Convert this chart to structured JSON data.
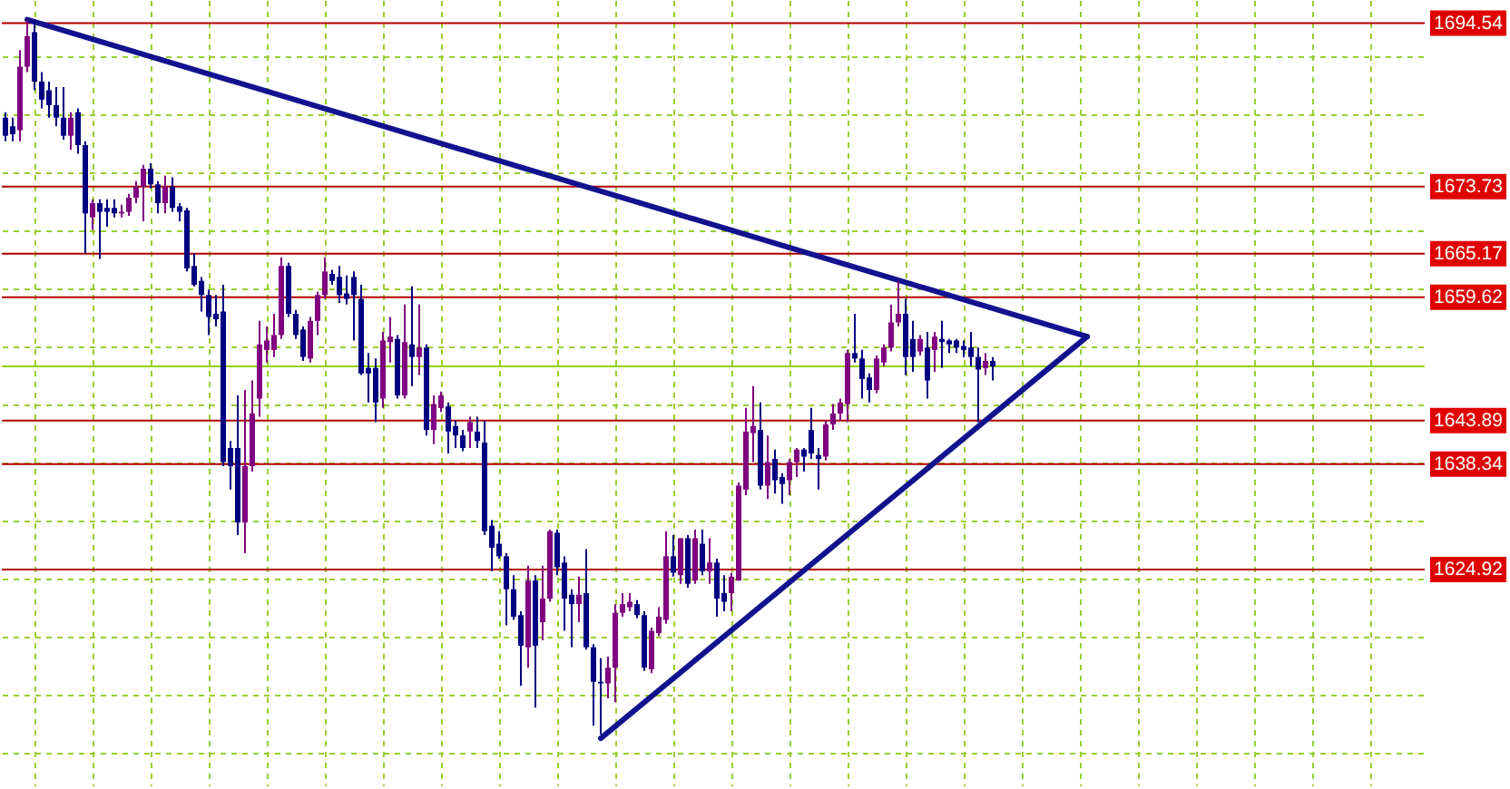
{
  "chart_data": {
    "type": "candlestick",
    "categories": [
      null,
      null,
      null,
      null,
      null,
      null,
      null,
      null,
      null,
      null,
      null,
      null,
      null,
      null,
      null,
      null,
      null,
      null,
      null,
      null,
      null,
      null,
      null,
      null,
      null,
      null,
      null,
      null,
      null,
      null,
      null,
      null,
      null,
      null,
      null,
      null,
      null,
      null,
      null,
      null,
      null,
      null,
      null,
      null,
      null,
      null,
      null,
      null,
      null,
      null,
      null,
      null,
      null,
      null,
      null,
      null,
      null,
      null,
      null,
      null,
      null,
      null,
      null,
      null,
      null,
      null,
      null,
      null,
      null,
      null,
      null,
      null,
      null,
      null,
      null,
      null,
      null,
      null,
      null,
      null,
      null,
      null,
      null,
      null,
      null,
      null,
      null,
      null,
      null,
      null,
      null,
      null,
      null,
      null,
      null,
      null,
      null,
      null,
      null,
      null,
      null,
      null,
      null,
      null,
      null,
      null,
      null,
      null,
      null,
      null,
      null,
      null,
      null,
      null,
      null,
      null,
      null,
      null,
      null,
      null,
      null,
      null,
      null,
      null,
      null,
      null,
      null,
      null,
      null,
      null,
      null,
      null,
      null,
      null,
      null,
      null,
      null,
      null,
      null,
      null,
      null,
      null,
      null,
      null,
      null,
      null,
      null,
      null,
      null,
      null,
      null,
      null,
      null,
      null,
      null,
      null,
      null,
      null,
      null,
      null,
      null,
      null,
      null,
      null,
      null,
      null,
      null,
      null,
      null,
      null,
      null,
      null,
      null,
      null,
      null,
      null,
      null,
      null,
      null,
      null,
      null,
      null,
      null,
      null,
      null,
      null,
      null,
      null,
      null,
      null,
      null,
      null,
      null,
      null,
      null,
      null
    ],
    "ohlc": [
      [
        1682.5,
        1683.2,
        1679.5,
        1680.2
      ],
      [
        1681.4,
        1682.5,
        1679.5,
        1680.4
      ],
      [
        1680.9,
        1691.1,
        1679.5,
        1689.0
      ],
      [
        1689.0,
        1695.0,
        1688.3,
        1692.9
      ],
      [
        1693.4,
        1694.8,
        1686.0,
        1687.1
      ],
      [
        1687.1,
        1688.3,
        1683.7,
        1684.8
      ],
      [
        1686.0,
        1687.1,
        1682.5,
        1684.1
      ],
      [
        1684.1,
        1686.4,
        1681.4,
        1682.5
      ],
      [
        1682.5,
        1686.4,
        1679.7,
        1680.2
      ],
      [
        1680.2,
        1683.2,
        1678.4,
        1682.5
      ],
      [
        1683.2,
        1683.7,
        1677.9,
        1679.0
      ],
      [
        1679.0,
        1679.5,
        1665.2,
        1670.3
      ],
      [
        1669.8,
        1672.1,
        1668.2,
        1671.6
      ],
      [
        1671.6,
        1672.1,
        1664.5,
        1670.5
      ],
      [
        1671.0,
        1672.1,
        1668.6,
        1670.5
      ],
      [
        1671.0,
        1672.1,
        1669.8,
        1670.3
      ],
      [
        1670.3,
        1671.4,
        1669.8,
        1670.5
      ],
      [
        1670.5,
        1672.8,
        1670.0,
        1672.3
      ],
      [
        1672.3,
        1674.4,
        1671.6,
        1673.7
      ],
      [
        1673.7,
        1676.5,
        1669.3,
        1676.0
      ],
      [
        1676.0,
        1676.7,
        1673.5,
        1674.0
      ],
      [
        1674.0,
        1674.4,
        1670.3,
        1671.6
      ],
      [
        1671.6,
        1675.1,
        1670.3,
        1673.7
      ],
      [
        1673.7,
        1674.9,
        1670.5,
        1671.0
      ],
      [
        1671.2,
        1671.6,
        1669.3,
        1670.5
      ],
      [
        1670.7,
        1671.0,
        1662.9,
        1663.3
      ],
      [
        1663.6,
        1665.2,
        1661.0,
        1661.2
      ],
      [
        1661.7,
        1662.2,
        1657.8,
        1659.9
      ],
      [
        1659.9,
        1660.6,
        1654.8,
        1657.1
      ],
      [
        1657.5,
        1659.9,
        1655.9,
        1656.8
      ],
      [
        1657.8,
        1661.2,
        1638.1,
        1638.6
      ],
      [
        1640.4,
        1641.3,
        1635.1,
        1638.1
      ],
      [
        1640.4,
        1647.1,
        1629.3,
        1630.9
      ],
      [
        1630.9,
        1647.8,
        1627.0,
        1638.1
      ],
      [
        1638.1,
        1649.0,
        1637.4,
        1644.8
      ],
      [
        1646.7,
        1656.6,
        1644.4,
        1653.6
      ],
      [
        1652.9,
        1655.9,
        1651.3,
        1654.1
      ],
      [
        1652.9,
        1657.5,
        1652.0,
        1654.8
      ],
      [
        1654.8,
        1664.7,
        1654.3,
        1663.6
      ],
      [
        1663.6,
        1664.0,
        1657.1,
        1657.5
      ],
      [
        1657.5,
        1658.0,
        1654.3,
        1654.8
      ],
      [
        1655.5,
        1655.9,
        1651.5,
        1652.0
      ],
      [
        1651.8,
        1657.1,
        1651.3,
        1656.6
      ],
      [
        1656.6,
        1660.3,
        1654.8,
        1659.9
      ],
      [
        1659.9,
        1664.7,
        1659.4,
        1662.9
      ],
      [
        1662.6,
        1663.1,
        1661.2,
        1661.7
      ],
      [
        1662.2,
        1663.6,
        1658.9,
        1659.9
      ],
      [
        1660.1,
        1662.4,
        1658.7,
        1659.4
      ],
      [
        1662.2,
        1662.9,
        1654.1,
        1659.9
      ],
      [
        1659.4,
        1661.2,
        1649.7,
        1649.9
      ],
      [
        1650.6,
        1652.5,
        1646.2,
        1649.9
      ],
      [
        1650.6,
        1651.8,
        1643.7,
        1646.2
      ],
      [
        1646.7,
        1655.2,
        1645.5,
        1654.1
      ],
      [
        1653.9,
        1657.1,
        1651.3,
        1654.6
      ],
      [
        1654.3,
        1654.8,
        1646.7,
        1647.1
      ],
      [
        1647.1,
        1658.7,
        1646.7,
        1653.9
      ],
      [
        1653.6,
        1661.0,
        1648.3,
        1652.0
      ],
      [
        1652.0,
        1658.7,
        1649.7,
        1653.2
      ],
      [
        1653.2,
        1653.6,
        1642.0,
        1642.7
      ],
      [
        1642.7,
        1647.1,
        1640.9,
        1646.0
      ],
      [
        1645.5,
        1647.6,
        1645.0,
        1647.1
      ],
      [
        1645.7,
        1646.2,
        1639.7,
        1642.5
      ],
      [
        1643.2,
        1643.9,
        1640.4,
        1642.0
      ],
      [
        1642.0,
        1642.7,
        1640.0,
        1640.4
      ],
      [
        1642.5,
        1644.4,
        1640.4,
        1643.7
      ],
      [
        1642.5,
        1644.4,
        1640.4,
        1641.3
      ],
      [
        1641.1,
        1643.9,
        1629.3,
        1629.8
      ],
      [
        1630.5,
        1631.2,
        1624.7,
        1627.7
      ],
      [
        1628.2,
        1629.8,
        1626.3,
        1626.6
      ],
      [
        1626.6,
        1627.0,
        1617.8,
        1622.4
      ],
      [
        1622.4,
        1624.2,
        1618.5,
        1618.9
      ],
      [
        1619.1,
        1619.6,
        1610.1,
        1615.2
      ],
      [
        1615.0,
        1625.4,
        1612.4,
        1623.5
      ],
      [
        1623.5,
        1624.2,
        1607.3,
        1615.2
      ],
      [
        1618.2,
        1625.4,
        1615.9,
        1621.2
      ],
      [
        1621.2,
        1630.0,
        1620.8,
        1629.8
      ],
      [
        1629.6,
        1630.0,
        1624.2,
        1625.2
      ],
      [
        1625.8,
        1626.6,
        1617.1,
        1621.2
      ],
      [
        1621.7,
        1622.4,
        1615.0,
        1620.5
      ],
      [
        1620.5,
        1624.0,
        1618.2,
        1621.7
      ],
      [
        1621.9,
        1627.5,
        1614.7,
        1615.0
      ],
      [
        1615.0,
        1615.4,
        1605.0,
        1610.6
      ],
      [
        1610.6,
        1613.6,
        1603.9,
        1610.4
      ],
      [
        1610.4,
        1613.8,
        1608.5,
        1612.4
      ],
      [
        1612.4,
        1620.5,
        1608.0,
        1619.4
      ],
      [
        1619.4,
        1621.9,
        1618.9,
        1620.5
      ],
      [
        1620.1,
        1621.9,
        1619.6,
        1620.8
      ],
      [
        1620.5,
        1621.0,
        1618.7,
        1619.1
      ],
      [
        1619.1,
        1619.6,
        1612.0,
        1612.4
      ],
      [
        1612.2,
        1617.5,
        1611.7,
        1617.1
      ],
      [
        1616.8,
        1620.1,
        1616.4,
        1618.9
      ],
      [
        1618.5,
        1629.8,
        1618.0,
        1626.6
      ],
      [
        1626.6,
        1629.3,
        1624.0,
        1624.5
      ],
      [
        1624.2,
        1628.9,
        1623.1,
        1628.9
      ],
      [
        1628.9,
        1629.3,
        1622.6,
        1623.1
      ],
      [
        1623.5,
        1630.0,
        1623.1,
        1628.9
      ],
      [
        1628.2,
        1630.0,
        1624.2,
        1624.7
      ],
      [
        1624.7,
        1628.9,
        1623.1,
        1625.8
      ],
      [
        1625.8,
        1626.3,
        1618.9,
        1621.2
      ],
      [
        1621.9,
        1624.2,
        1619.6,
        1620.8
      ],
      [
        1621.9,
        1624.5,
        1619.6,
        1624.0
      ],
      [
        1623.5,
        1636.0,
        1623.5,
        1635.6
      ],
      [
        1635.1,
        1645.5,
        1634.4,
        1642.5
      ],
      [
        1642.3,
        1648.3,
        1638.6,
        1643.2
      ],
      [
        1642.7,
        1646.2,
        1635.1,
        1635.6
      ],
      [
        1635.6,
        1642.0,
        1633.9,
        1638.6
      ],
      [
        1639.0,
        1640.2,
        1634.6,
        1636.3
      ],
      [
        1636.7,
        1637.2,
        1633.3,
        1635.8
      ],
      [
        1636.3,
        1639.0,
        1634.4,
        1638.6
      ],
      [
        1638.6,
        1640.4,
        1636.7,
        1640.2
      ],
      [
        1640.2,
        1640.4,
        1637.4,
        1639.3
      ],
      [
        1642.7,
        1645.5,
        1639.0,
        1639.7
      ],
      [
        1639.5,
        1640.4,
        1635.1,
        1639.0
      ],
      [
        1639.3,
        1643.9,
        1638.8,
        1643.4
      ],
      [
        1643.4,
        1646.0,
        1642.7,
        1644.8
      ],
      [
        1644.8,
        1646.7,
        1643.9,
        1646.2
      ],
      [
        1646.0,
        1652.9,
        1643.7,
        1652.5
      ],
      [
        1652.5,
        1657.5,
        1651.3,
        1651.8
      ],
      [
        1651.8,
        1652.9,
        1646.7,
        1649.2
      ],
      [
        1649.4,
        1649.9,
        1646.2,
        1647.8
      ],
      [
        1647.8,
        1652.2,
        1647.4,
        1651.8
      ],
      [
        1651.3,
        1653.6,
        1650.8,
        1653.2
      ],
      [
        1653.2,
        1658.7,
        1652.7,
        1656.4
      ],
      [
        1656.4,
        1661.7,
        1655.9,
        1657.5
      ],
      [
        1657.5,
        1659.4,
        1649.7,
        1652.0
      ],
      [
        1654.3,
        1656.6,
        1650.1,
        1652.0
      ],
      [
        1652.7,
        1654.8,
        1652.2,
        1654.3
      ],
      [
        1653.2,
        1655.2,
        1646.7,
        1649.0
      ],
      [
        1652.9,
        1655.2,
        1650.1,
        1654.6
      ],
      [
        1654.3,
        1656.6,
        1650.6,
        1653.9
      ],
      [
        1654.1,
        1654.3,
        1652.5,
        1653.6
      ],
      [
        1654.1,
        1654.3,
        1652.5,
        1653.2
      ],
      [
        1653.4,
        1654.1,
        1652.0,
        1652.9
      ],
      [
        1653.2,
        1655.2,
        1650.8,
        1652.0
      ],
      [
        1652.0,
        1653.2,
        1643.7,
        1650.4
      ],
      [
        1650.6,
        1652.5,
        1649.7,
        1651.5
      ],
      [
        1651.5,
        1652.0,
        1649.0,
        1650.8
      ],
      null,
      null,
      null,
      null,
      null,
      null,
      null,
      null,
      null,
      null,
      null,
      null,
      null,
      null,
      null,
      null,
      null,
      null,
      null,
      null,
      null,
      null,
      null,
      null,
      null,
      null,
      null,
      null,
      null,
      null,
      null,
      null,
      null,
      null,
      null,
      null,
      null,
      null,
      null,
      null,
      null,
      null,
      null,
      null,
      null,
      null,
      null,
      null,
      null,
      null,
      null,
      null,
      null,
      null,
      null,
      null,
      null,
      null,
      null
    ],
    "colors": [
      "#000080",
      "#000080",
      "#800080",
      "#800080",
      "#000080",
      "#000080",
      "#000080",
      "#000080",
      "#000080",
      "#800080",
      "#000080",
      "#000080",
      "#800080",
      "#000080",
      "#000080",
      "#000080",
      "#800080",
      "#800080",
      "#800080",
      "#800080",
      "#000080",
      "#000080",
      "#800080",
      "#000080",
      "#000080",
      "#000080",
      "#000080",
      "#000080",
      "#000080",
      "#000080",
      "#000080",
      "#000080",
      "#000080",
      "#800080",
      "#800080",
      "#800080",
      "#800080",
      "#800080",
      "#800080",
      "#000080",
      "#000080",
      "#000080",
      "#800080",
      "#800080",
      "#800080",
      "#000080",
      "#000080",
      "#000080",
      "#000080",
      "#000080",
      "#000080",
      "#000080",
      "#800080",
      "#800080",
      "#000080",
      "#800080",
      "#000080",
      "#800080",
      "#000080",
      "#800080",
      "#800080",
      "#000080",
      "#000080",
      "#000080",
      "#800080",
      "#000080",
      "#000080",
      "#000080",
      "#000080",
      "#000080",
      "#000080",
      "#000080",
      "#800080",
      "#000080",
      "#800080",
      "#800080",
      "#000080",
      "#000080",
      "#000080",
      "#800080",
      "#000080",
      "#000080",
      "#000080",
      "#800080",
      "#800080",
      "#800080",
      "#800080",
      "#000080",
      "#000080",
      "#800080",
      "#800080",
      "#800080",
      "#000080",
      "#800080",
      "#000080",
      "#800080",
      "#000080",
      "#800080",
      "#000080",
      "#000080",
      "#800080",
      "#800080",
      "#800080",
      "#800080",
      "#000080",
      "#800080",
      "#000080",
      "#000080",
      "#800080",
      "#800080",
      "#000080",
      "#000080",
      "#000080",
      "#800080",
      "#800080",
      "#800080",
      "#800080",
      "#000080",
      "#000080",
      "#000080",
      "#800080",
      "#800080",
      "#800080",
      "#800080",
      "#000080",
      "#000080",
      "#800080",
      "#000080",
      "#800080",
      "#000080",
      "#000080",
      "#000080",
      "#000080",
      "#000080",
      "#000080",
      "#800080",
      "#000080",
      null,
      null,
      null,
      null,
      null,
      null,
      null,
      null,
      null,
      null,
      null,
      null,
      null,
      null,
      null,
      null,
      null,
      null,
      null,
      null,
      null,
      null,
      null,
      null,
      null,
      null,
      null,
      null,
      null,
      null,
      null,
      null,
      null,
      null,
      null,
      null,
      null,
      null,
      null,
      null,
      null,
      null,
      null,
      null,
      null,
      null,
      null,
      null,
      null,
      null,
      null,
      null,
      null,
      null,
      null,
      null,
      null,
      null,
      null
    ],
    "series": [
      {
        "type": "line",
        "color": "#12128f",
        "values": [
          null,
          null,
          null,
          1695.0,
          null,
          null,
          null,
          null,
          null,
          null,
          null,
          null,
          null,
          null,
          null,
          null,
          null,
          null,
          null,
          null,
          null,
          null,
          null,
          null,
          null,
          null,
          null,
          null,
          null,
          null,
          null,
          null,
          null,
          null,
          null,
          null,
          null,
          null,
          null,
          null,
          null,
          null,
          null,
          null,
          null,
          null,
          null,
          null,
          null,
          null,
          null,
          null,
          null,
          null,
          null,
          null,
          null,
          null,
          null,
          null,
          null,
          null,
          null,
          null,
          null,
          null,
          null,
          null,
          null,
          null,
          null,
          null,
          null,
          null,
          null,
          null,
          null,
          null,
          null,
          null,
          null,
          null,
          null,
          null,
          null,
          null,
          null,
          null,
          null,
          null,
          null,
          null,
          null,
          null,
          null,
          null,
          null,
          null,
          null,
          null,
          null,
          null,
          null,
          null,
          null,
          null,
          null,
          null,
          null,
          null,
          null,
          null,
          null,
          null,
          null,
          null,
          null,
          null,
          null,
          null,
          null,
          null,
          null,
          null,
          null,
          null,
          null,
          null,
          null,
          null,
          null,
          null,
          null,
          null,
          null,
          null,
          null,
          null,
          null,
          null,
          null,
          null,
          null,
          null,
          null,
          null,
          null,
          null,
          null,
          1654.6,
          null,
          null,
          null,
          null,
          null,
          null,
          null,
          null,
          null,
          null,
          null,
          null,
          null,
          null,
          null,
          null,
          null,
          null,
          null,
          null,
          null,
          null,
          null,
          null,
          null,
          null,
          null,
          null,
          null,
          null,
          null,
          null,
          null,
          null,
          null,
          null,
          null,
          null,
          null,
          null,
          null,
          null,
          null,
          null,
          null,
          null
        ]
      },
      {
        "type": "line",
        "color": "#12128f",
        "values": [
          null,
          null,
          null,
          null,
          null,
          null,
          null,
          null,
          null,
          null,
          null,
          null,
          null,
          null,
          null,
          null,
          null,
          null,
          null,
          null,
          null,
          null,
          null,
          null,
          null,
          null,
          null,
          null,
          null,
          null,
          null,
          null,
          null,
          null,
          null,
          null,
          null,
          null,
          null,
          null,
          null,
          null,
          null,
          null,
          null,
          null,
          null,
          null,
          null,
          null,
          null,
          null,
          null,
          null,
          null,
          null,
          null,
          null,
          null,
          null,
          null,
          null,
          null,
          null,
          null,
          null,
          null,
          null,
          null,
          null,
          null,
          null,
          null,
          null,
          null,
          null,
          null,
          null,
          null,
          null,
          null,
          null,
          1603.4,
          null,
          null,
          null,
          null,
          null,
          null,
          null,
          null,
          null,
          null,
          null,
          null,
          null,
          null,
          null,
          null,
          null,
          null,
          null,
          null,
          null,
          null,
          null,
          null,
          null,
          null,
          null,
          null,
          null,
          null,
          null,
          null,
          null,
          null,
          null,
          null,
          null,
          null,
          null,
          null,
          null,
          null,
          null,
          null,
          null,
          null,
          null,
          null,
          null,
          null,
          null,
          null,
          null,
          null,
          null,
          null,
          null,
          null,
          null,
          null,
          null,
          null,
          null,
          null,
          null,
          null,
          1654.6,
          null,
          null,
          null,
          null,
          null,
          null,
          null,
          null,
          null,
          null,
          null,
          null,
          null,
          null,
          null,
          null,
          null,
          null,
          null,
          null,
          null,
          null,
          null,
          null,
          null,
          null,
          null,
          null,
          null,
          null,
          null,
          null,
          null,
          null,
          null,
          null,
          null,
          null,
          null,
          null,
          null,
          null,
          null,
          null,
          null,
          null
        ]
      }
    ],
    "ylim": [
      1597.4,
      1697.5
    ],
    "yticks": [
      {
        "value": 1601.5,
        "label": null
      },
      {
        "value": 1608.9,
        "label": null
      },
      {
        "value": 1616.3,
        "label": null
      },
      {
        "value": 1623.7,
        "label": null
      },
      {
        "value": 1631.1,
        "label": null
      },
      {
        "value": 1638.5,
        "label": null
      },
      {
        "value": 1645.9,
        "label": null
      },
      {
        "value": 1653.3,
        "label": null
      },
      {
        "value": 1660.7,
        "label": null
      },
      {
        "value": 1668.1,
        "label": null
      },
      {
        "value": 1675.5,
        "label": null
      },
      {
        "value": 1682.9,
        "label": null
      },
      {
        "value": 1690.3,
        "label": null
      }
    ],
    "ref_lines": [
      {
        "axis": "y",
        "value": 1694.54,
        "label": "1694.54",
        "color": "#b00000"
      },
      {
        "axis": "y",
        "value": 1673.73,
        "label": "1673.73",
        "color": "#b00000"
      },
      {
        "axis": "y",
        "value": 1665.17,
        "label": "1665.17",
        "color": "#b00000"
      },
      {
        "axis": "y",
        "value": 1659.62,
        "label": "1659.62",
        "color": "#b00000"
      },
      {
        "axis": "y",
        "value": 1643.89,
        "label": "1643.89",
        "color": "#b00000"
      },
      {
        "axis": "y",
        "value": 1638.34,
        "label": "1638.34",
        "color": "#b00000"
      },
      {
        "axis": "y",
        "value": 1624.92,
        "label": "1624.92",
        "color": "#b00000"
      },
      {
        "axis": "y",
        "value": 1650.8,
        "color": "#8fd400"
      }
    ],
    "grid": true
  }
}
